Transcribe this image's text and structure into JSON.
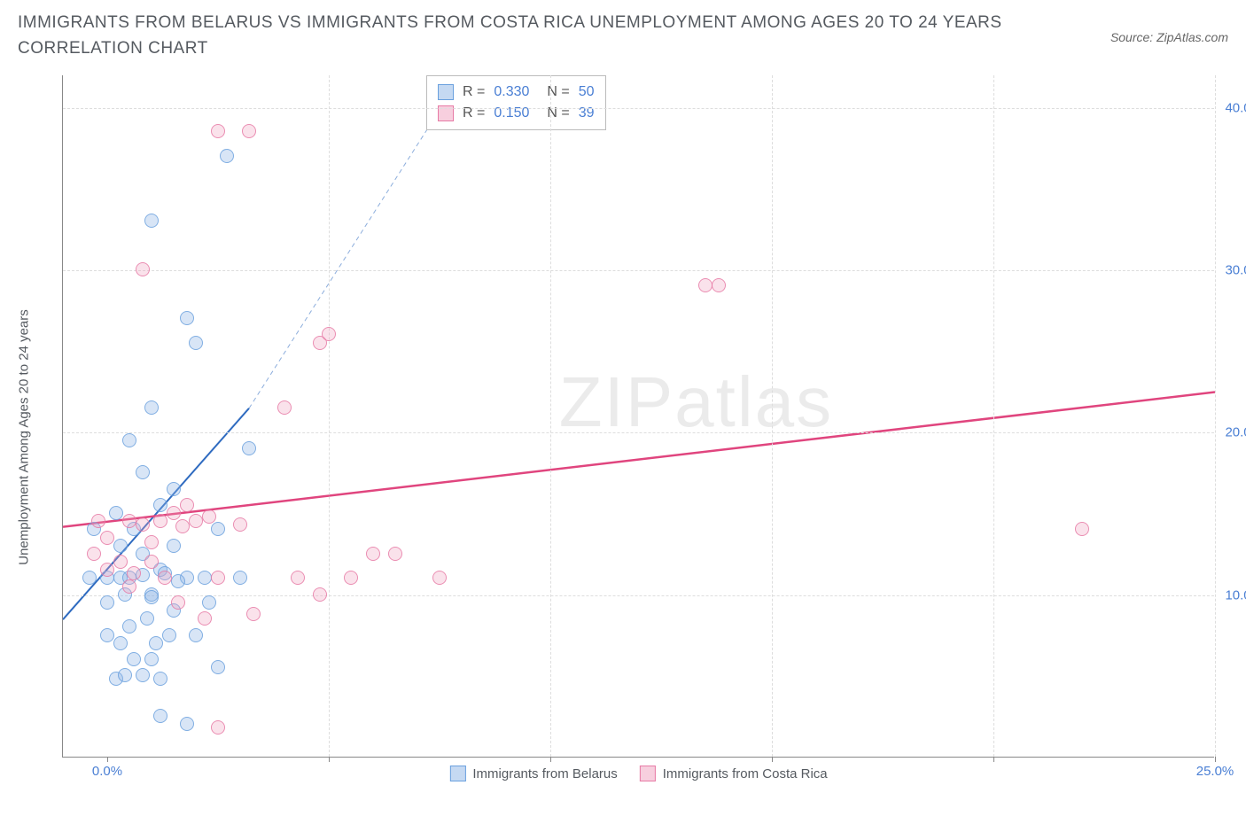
{
  "title": "IMMIGRANTS FROM BELARUS VS IMMIGRANTS FROM COSTA RICA UNEMPLOYMENT AMONG AGES 20 TO 24 YEARS CORRELATION CHART",
  "source": "Source: ZipAtlas.com",
  "y_axis_label": "Unemployment Among Ages 20 to 24 years",
  "watermark": {
    "part1": "ZIP",
    "part2": "atlas"
  },
  "chart": {
    "type": "scatter",
    "background_color": "#ffffff",
    "grid_color": "#dddddd",
    "axis_color": "#888888",
    "text_color": "#555a60",
    "tick_label_color": "#4a7fd4",
    "marker_size": 16,
    "xlim": [
      -1.0,
      25.0
    ],
    "ylim": [
      0.0,
      42.0
    ],
    "x_ticks": [
      0.0,
      5.0,
      10.0,
      15.0,
      20.0,
      25.0
    ],
    "x_tick_labels": [
      "0.0%",
      "",
      "",
      "",
      "",
      "25.0%"
    ],
    "y_ticks": [
      10.0,
      20.0,
      30.0,
      40.0
    ],
    "y_tick_labels": [
      "10.0%",
      "20.0%",
      "30.0%",
      "40.0%"
    ],
    "series": [
      {
        "name": "Immigrants from Belarus",
        "color_fill": "rgba(140,180,230,0.4)",
        "color_stroke": "#6aa0de",
        "class": "blue",
        "R": "0.330",
        "N": "50",
        "trend": {
          "x1": -1.0,
          "y1": 8.5,
          "x2": 3.2,
          "y2": 21.5,
          "dash_to_x": 8.0,
          "dash_to_y": 42.0,
          "color": "#2f6bc0",
          "width": 2
        },
        "points": [
          [
            0.0,
            9.5
          ],
          [
            -0.4,
            11.0
          ],
          [
            0.0,
            11.0
          ],
          [
            0.3,
            11.0
          ],
          [
            -0.3,
            14.0
          ],
          [
            0.2,
            15.0
          ],
          [
            0.5,
            19.5
          ],
          [
            0.3,
            7.0
          ],
          [
            0.5,
            8.0
          ],
          [
            0.8,
            5.0
          ],
          [
            1.0,
            6.0
          ],
          [
            1.2,
            4.8
          ],
          [
            1.4,
            7.5
          ],
          [
            0.5,
            11.0
          ],
          [
            0.8,
            12.5
          ],
          [
            1.0,
            10.0
          ],
          [
            1.2,
            11.5
          ],
          [
            1.5,
            9.0
          ],
          [
            1.8,
            11.0
          ],
          [
            1.5,
            13.0
          ],
          [
            0.8,
            17.5
          ],
          [
            1.5,
            16.5
          ],
          [
            1.0,
            21.5
          ],
          [
            2.2,
            11.0
          ],
          [
            2.5,
            14.0
          ],
          [
            2.0,
            7.5
          ],
          [
            2.5,
            5.5
          ],
          [
            3.0,
            11.0
          ],
          [
            3.2,
            19.0
          ],
          [
            2.0,
            25.5
          ],
          [
            1.8,
            27.0
          ],
          [
            1.0,
            33.0
          ],
          [
            2.7,
            37.0
          ],
          [
            0.6,
            6.0
          ],
          [
            0.2,
            4.8
          ],
          [
            0.8,
            11.2
          ],
          [
            1.3,
            11.3
          ],
          [
            0.4,
            10.0
          ],
          [
            0.0,
            7.5
          ],
          [
            1.8,
            2.0
          ],
          [
            1.2,
            2.5
          ],
          [
            0.4,
            5.0
          ],
          [
            1.0,
            9.8
          ],
          [
            1.6,
            10.8
          ],
          [
            2.3,
            9.5
          ],
          [
            1.2,
            15.5
          ],
          [
            0.6,
            14.0
          ],
          [
            0.3,
            13.0
          ],
          [
            0.9,
            8.5
          ],
          [
            1.1,
            7.0
          ]
        ]
      },
      {
        "name": "Immigrants from Costa Rica",
        "color_fill": "rgba(240,160,190,0.35)",
        "color_stroke": "#e77aa5",
        "class": "pink",
        "R": "0.150",
        "N": "39",
        "trend": {
          "x1": -1.0,
          "y1": 14.2,
          "x2": 25.0,
          "y2": 22.5,
          "color": "#e0457e",
          "width": 2.5
        },
        "points": [
          [
            0.0,
            11.5
          ],
          [
            0.3,
            12.0
          ],
          [
            0.5,
            14.5
          ],
          [
            0.8,
            14.3
          ],
          [
            1.2,
            14.5
          ],
          [
            1.5,
            15.0
          ],
          [
            2.0,
            14.5
          ],
          [
            2.3,
            14.8
          ],
          [
            1.0,
            12.0
          ],
          [
            1.3,
            11.0
          ],
          [
            1.8,
            15.5
          ],
          [
            2.5,
            11.0
          ],
          [
            3.0,
            14.3
          ],
          [
            3.3,
            8.8
          ],
          [
            2.2,
            8.5
          ],
          [
            2.5,
            1.8
          ],
          [
            1.6,
            9.5
          ],
          [
            4.3,
            11.0
          ],
          [
            4.8,
            10.0
          ],
          [
            5.5,
            11.0
          ],
          [
            6.0,
            12.5
          ],
          [
            6.5,
            12.5
          ],
          [
            7.5,
            11.0
          ],
          [
            4.0,
            21.5
          ],
          [
            4.8,
            25.5
          ],
          [
            5.0,
            26.0
          ],
          [
            0.8,
            30.0
          ],
          [
            2.5,
            38.5
          ],
          [
            3.2,
            38.5
          ],
          [
            13.5,
            29.0
          ],
          [
            13.8,
            29.0
          ],
          [
            22.0,
            14.0
          ],
          [
            -0.2,
            14.5
          ],
          [
            0.5,
            10.5
          ],
          [
            0.0,
            13.5
          ],
          [
            1.0,
            13.2
          ],
          [
            -0.3,
            12.5
          ],
          [
            0.6,
            11.3
          ],
          [
            1.7,
            14.2
          ]
        ]
      }
    ]
  },
  "bottom_legend": [
    {
      "swatch": "blue",
      "label": "Immigrants from Belarus"
    },
    {
      "swatch": "pink",
      "label": "Immigrants from Costa Rica"
    }
  ],
  "stats_legend": {
    "r_label": "R =",
    "n_label": "N ="
  }
}
